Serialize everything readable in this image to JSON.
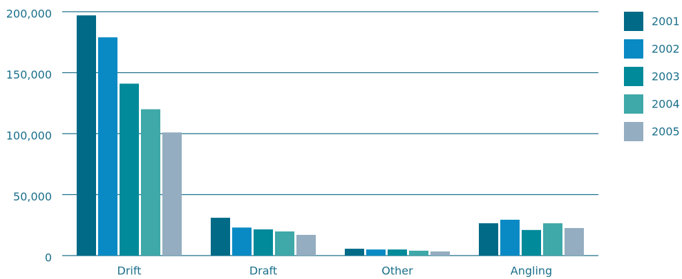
{
  "chart_data": {
    "type": "bar",
    "categories": [
      "Drift",
      "Draft",
      "Other",
      "Angling"
    ],
    "series": [
      {
        "name": "2001",
        "color": "#006a87",
        "values": [
          197000,
          31000,
          5600,
          26500
        ]
      },
      {
        "name": "2002",
        "color": "#0a8ac4",
        "values": [
          179000,
          23000,
          5000,
          29400
        ]
      },
      {
        "name": "2003",
        "color": "#008a9a",
        "values": [
          141000,
          21500,
          5000,
          21000
        ]
      },
      {
        "name": "2004",
        "color": "#3fa8a8",
        "values": [
          120000,
          19800,
          4000,
          26500
        ]
      },
      {
        "name": "2005",
        "color": "#94adc0",
        "values": [
          101000,
          17000,
          3400,
          22600
        ]
      }
    ],
    "ylim": [
      0,
      200000
    ],
    "yticks": [
      0,
      {
        "value": 50000,
        "label": "50,000"
      },
      {
        "value": 100000,
        "label": "100,000"
      },
      {
        "value": 150000,
        "label": "150,000"
      },
      {
        "value": 200000,
        "label": "200,000"
      }
    ],
    "grid": true,
    "legend": "right"
  }
}
